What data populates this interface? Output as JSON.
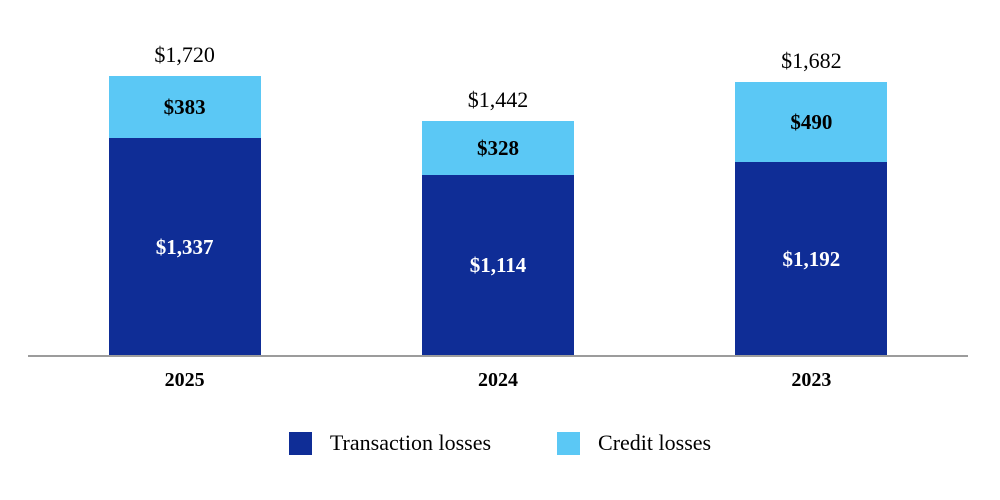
{
  "chart_data": {
    "type": "bar",
    "stacked": true,
    "title": "",
    "categories": [
      "2025",
      "2024",
      "2023"
    ],
    "series": [
      {
        "name": "Transaction losses",
        "color": "#0F2D96",
        "values": [
          1337,
          1114,
          1192
        ],
        "value_labels": [
          "$1,337",
          "$1,114",
          "$1,192"
        ],
        "label_color": "#FFFFFF"
      },
      {
        "name": "Credit losses",
        "color": "#5BC8F5",
        "values": [
          383,
          328,
          490
        ],
        "value_labels": [
          "$383",
          "$328",
          "$490"
        ],
        "label_color": "#000000"
      }
    ],
    "totals": {
      "values": [
        1720,
        1442,
        1682
      ],
      "labels": [
        "$1,720",
        "$1,442",
        "$1,682"
      ]
    },
    "legend": {
      "position": "bottom",
      "items": [
        {
          "label": "Transaction losses",
          "color": "#0F2D96"
        },
        {
          "label": "Credit losses",
          "color": "#5BC8F5"
        }
      ]
    },
    "axis": {
      "baseline_color": "#9C9C9C",
      "ylim": [
        0,
        1800
      ],
      "gridlines": false,
      "y_axis_visible": false
    }
  }
}
